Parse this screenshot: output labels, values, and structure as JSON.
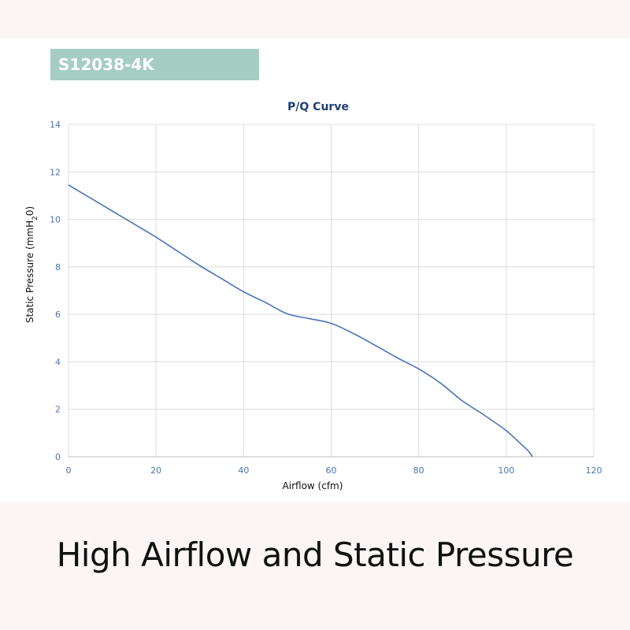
{
  "model": "S12038-4K",
  "caption": "High Airflow and Static Pressure",
  "colors": {
    "badge": "#a6cdc2",
    "line": "#4a74b8",
    "title": "#1f3f73",
    "tick": "#4a74b8",
    "grid": "#dcdcdc"
  },
  "chart_data": {
    "type": "line",
    "title": "P/Q Curve",
    "xlabel": "Airflow (cfm)",
    "ylabel": "Static Pressure (mmH",
    "ylabel_sub": "2",
    "ylabel_end": "0)",
    "xlim": [
      0,
      120
    ],
    "ylim": [
      0,
      14
    ],
    "xticks": [
      0,
      20,
      40,
      60,
      80,
      100,
      120
    ],
    "yticks": [
      0,
      2,
      4,
      6,
      8,
      10,
      12,
      14
    ],
    "grid": true,
    "series": [
      {
        "x": [
          0,
          5,
          10,
          15,
          20,
          25,
          30,
          35,
          40,
          45,
          50,
          55,
          60,
          65,
          70,
          75,
          80,
          85,
          90,
          95,
          100,
          103,
          105,
          106
        ],
        "y": [
          11.45,
          10.9,
          10.35,
          9.8,
          9.25,
          8.65,
          8.05,
          7.5,
          6.95,
          6.5,
          6.02,
          5.82,
          5.62,
          5.2,
          4.7,
          4.18,
          3.7,
          3.1,
          2.35,
          1.75,
          1.1,
          0.6,
          0.25,
          0.0
        ]
      }
    ]
  }
}
